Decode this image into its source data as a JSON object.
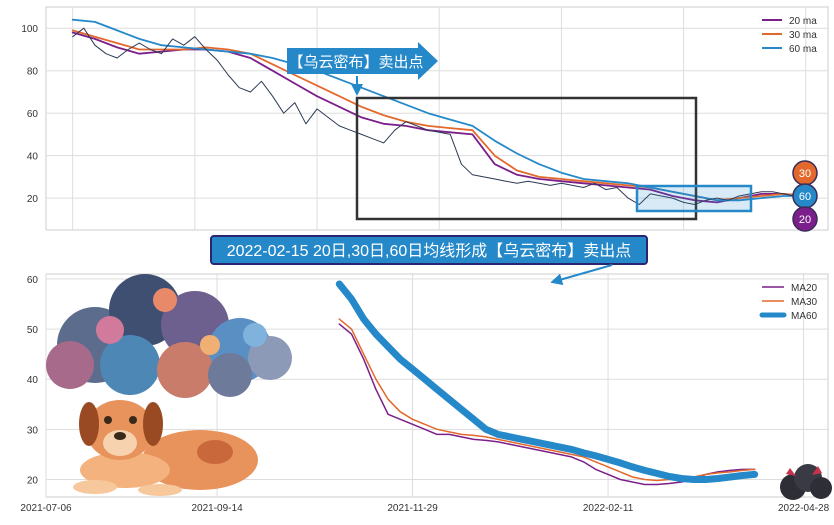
{
  "colors": {
    "ma20": "#7b1f8a",
    "ma30": "#e2682c",
    "ma60": "#2589c9",
    "price": "#2d3a55",
    "callout_bg": "#2589c9",
    "box": "#333333"
  },
  "top_chart": {
    "sell_callout": "【乌云密布】卖出点",
    "legend": [
      "20 ma",
      "30 ma",
      "60 ma"
    ],
    "badges": [
      "30",
      "60",
      "20"
    ]
  },
  "bottom_chart": {
    "callout": "2022-02-15 20日,30日,60日均线形成【乌云密布】卖出点",
    "legend": [
      "MA20",
      "MA30",
      "MA60"
    ],
    "icons": [
      "storm-cloud-icon",
      "dog-icon",
      "small-dark-cloud-icon"
    ]
  },
  "chart_data": [
    {
      "type": "line",
      "ylim": [
        5,
        110
      ],
      "yticks": [
        "100",
        "80",
        "60",
        "40",
        "20"
      ],
      "ytick_values": [
        100,
        80,
        60,
        40,
        20
      ],
      "xlim": [
        -12,
        340
      ],
      "series": [
        {
          "name": "20 ma",
          "x": [
            0,
            10,
            20,
            30,
            40,
            50,
            60,
            70,
            80,
            90,
            100,
            110,
            120,
            130,
            140,
            150,
            160,
            170,
            180,
            190,
            200,
            210,
            220,
            230,
            240,
            250,
            260,
            270,
            280,
            290,
            300,
            310,
            320,
            330
          ],
          "values": [
            98,
            95,
            91,
            88,
            89,
            90,
            90,
            89,
            86,
            80,
            74,
            68,
            63,
            58,
            55,
            54,
            52,
            51,
            50,
            36,
            31,
            29,
            28,
            27,
            26,
            25,
            24,
            21,
            19,
            18,
            20,
            22,
            22,
            21
          ]
        },
        {
          "name": "30 ma",
          "x": [
            0,
            10,
            20,
            30,
            40,
            50,
            60,
            70,
            80,
            90,
            100,
            110,
            120,
            130,
            140,
            150,
            160,
            170,
            180,
            190,
            200,
            210,
            220,
            230,
            240,
            250,
            260,
            270,
            280,
            290,
            300,
            310,
            320,
            330
          ],
          "values": [
            99,
            96,
            93,
            90,
            90,
            90,
            91,
            90,
            88,
            83,
            78,
            73,
            68,
            63,
            59,
            56,
            54,
            53,
            52,
            40,
            33,
            30,
            29,
            28,
            27,
            26,
            25,
            23,
            21,
            19,
            20,
            21,
            22,
            21
          ]
        },
        {
          "name": "60 ma",
          "x": [
            0,
            10,
            20,
            30,
            40,
            50,
            60,
            70,
            80,
            90,
            100,
            110,
            120,
            130,
            140,
            150,
            160,
            170,
            180,
            190,
            200,
            210,
            220,
            230,
            240,
            250,
            260,
            270,
            280,
            290,
            300,
            310,
            320,
            330
          ],
          "values": [
            104,
            103,
            99,
            95,
            92,
            91,
            90,
            89,
            88,
            86,
            83,
            80,
            76,
            72,
            68,
            64,
            60,
            57,
            54,
            47,
            41,
            36,
            32,
            29,
            28,
            27,
            25,
            23,
            21,
            19,
            19,
            20,
            21,
            21
          ]
        },
        {
          "name": "price",
          "x": [
            0,
            5,
            10,
            15,
            20,
            25,
            30,
            35,
            40,
            45,
            50,
            55,
            60,
            65,
            70,
            75,
            80,
            85,
            90,
            95,
            100,
            105,
            110,
            115,
            120,
            125,
            130,
            135,
            140,
            145,
            150,
            155,
            160,
            165,
            170,
            175,
            180,
            185,
            190,
            195,
            200,
            205,
            210,
            215,
            220,
            225,
            230,
            235,
            240,
            245,
            250,
            255,
            260,
            265,
            270,
            275,
            280,
            285,
            290,
            295,
            300,
            305,
            310,
            315,
            320,
            325,
            330
          ],
          "values": [
            96,
            100,
            92,
            88,
            86,
            90,
            93,
            90,
            88,
            95,
            92,
            96,
            90,
            85,
            78,
            72,
            70,
            75,
            68,
            60,
            65,
            55,
            62,
            58,
            54,
            52,
            50,
            48,
            46,
            52,
            56,
            54,
            52,
            51,
            50,
            36,
            31,
            30,
            29,
            28,
            27,
            28,
            27,
            26,
            27,
            26,
            25,
            27,
            24,
            25,
            20,
            17,
            22,
            21,
            20,
            18,
            17,
            19,
            20,
            19,
            21,
            22,
            23,
            23,
            22,
            21,
            20
          ]
        }
      ]
    },
    {
      "type": "line",
      "ylim": [
        16.5,
        61
      ],
      "yticks": [
        "60",
        "50",
        "40",
        "30",
        "20"
      ],
      "ytick_values": [
        60,
        50,
        40,
        30,
        20
      ],
      "xlim": [
        0,
        320
      ],
      "xticks": [
        "2021-07-06",
        "2021-09-14",
        "2021-11-29",
        "2022-02-11",
        "2022-04-28"
      ],
      "xtick_values": [
        0,
        70,
        150,
        230,
        310
      ],
      "series": [
        {
          "name": "MA20",
          "x": [
            120,
            125,
            130,
            135,
            140,
            145,
            150,
            155,
            160,
            165,
            170,
            175,
            180,
            185,
            190,
            195,
            200,
            205,
            210,
            215,
            220,
            225,
            230,
            235,
            240,
            245,
            250,
            255,
            260,
            265,
            270,
            275,
            280,
            285,
            290
          ],
          "values": [
            51,
            49,
            44,
            38,
            33,
            32,
            31,
            30,
            29,
            29,
            28.5,
            28,
            27.8,
            27.5,
            27,
            26.5,
            26,
            25.5,
            25,
            24.5,
            23.5,
            22,
            21,
            20,
            19.5,
            19,
            19,
            19.2,
            19.5,
            20,
            21,
            21.5,
            21.8,
            22,
            22
          ]
        },
        {
          "name": "MA30",
          "x": [
            120,
            125,
            130,
            135,
            140,
            145,
            150,
            155,
            160,
            165,
            170,
            175,
            180,
            185,
            190,
            195,
            200,
            205,
            210,
            215,
            220,
            225,
            230,
            235,
            240,
            245,
            250,
            255,
            260,
            265,
            270,
            275,
            280,
            285,
            290
          ],
          "values": [
            52,
            50,
            45,
            40,
            36,
            33.5,
            32,
            31,
            30,
            29.5,
            29,
            28.8,
            28.5,
            28,
            27.5,
            27,
            26.5,
            26,
            25.5,
            25,
            24.5,
            23.5,
            22.5,
            21.5,
            20.5,
            20,
            19.8,
            20,
            20.2,
            20.5,
            21,
            21.3,
            21.5,
            21.8,
            22
          ]
        },
        {
          "name": "MA60",
          "x": [
            120,
            125,
            130,
            135,
            140,
            145,
            150,
            155,
            160,
            165,
            170,
            175,
            180,
            185,
            190,
            195,
            200,
            205,
            210,
            215,
            220,
            225,
            230,
            235,
            240,
            245,
            250,
            255,
            260,
            265,
            270,
            275,
            280,
            285,
            290
          ],
          "values": [
            59,
            56,
            52,
            49,
            46.5,
            44,
            42,
            40,
            38,
            36,
            34,
            32,
            30,
            29,
            28.5,
            28,
            27.5,
            27,
            26.5,
            26,
            25.3,
            24.7,
            24,
            23.3,
            22.5,
            21.8,
            21.2,
            20.6,
            20.2,
            20,
            20,
            20.2,
            20.5,
            20.8,
            21
          ]
        }
      ]
    }
  ]
}
